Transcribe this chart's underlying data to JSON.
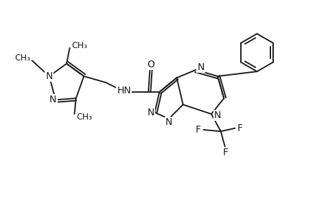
{
  "bg_color": "#ffffff",
  "line_color": "#1a1a1a",
  "line_width": 1.4,
  "font_size": 10,
  "figsize": [
    4.6,
    3.0
  ],
  "dpi": 100,
  "xlim": [
    0,
    10
  ],
  "ylim": [
    0,
    6.5
  ]
}
